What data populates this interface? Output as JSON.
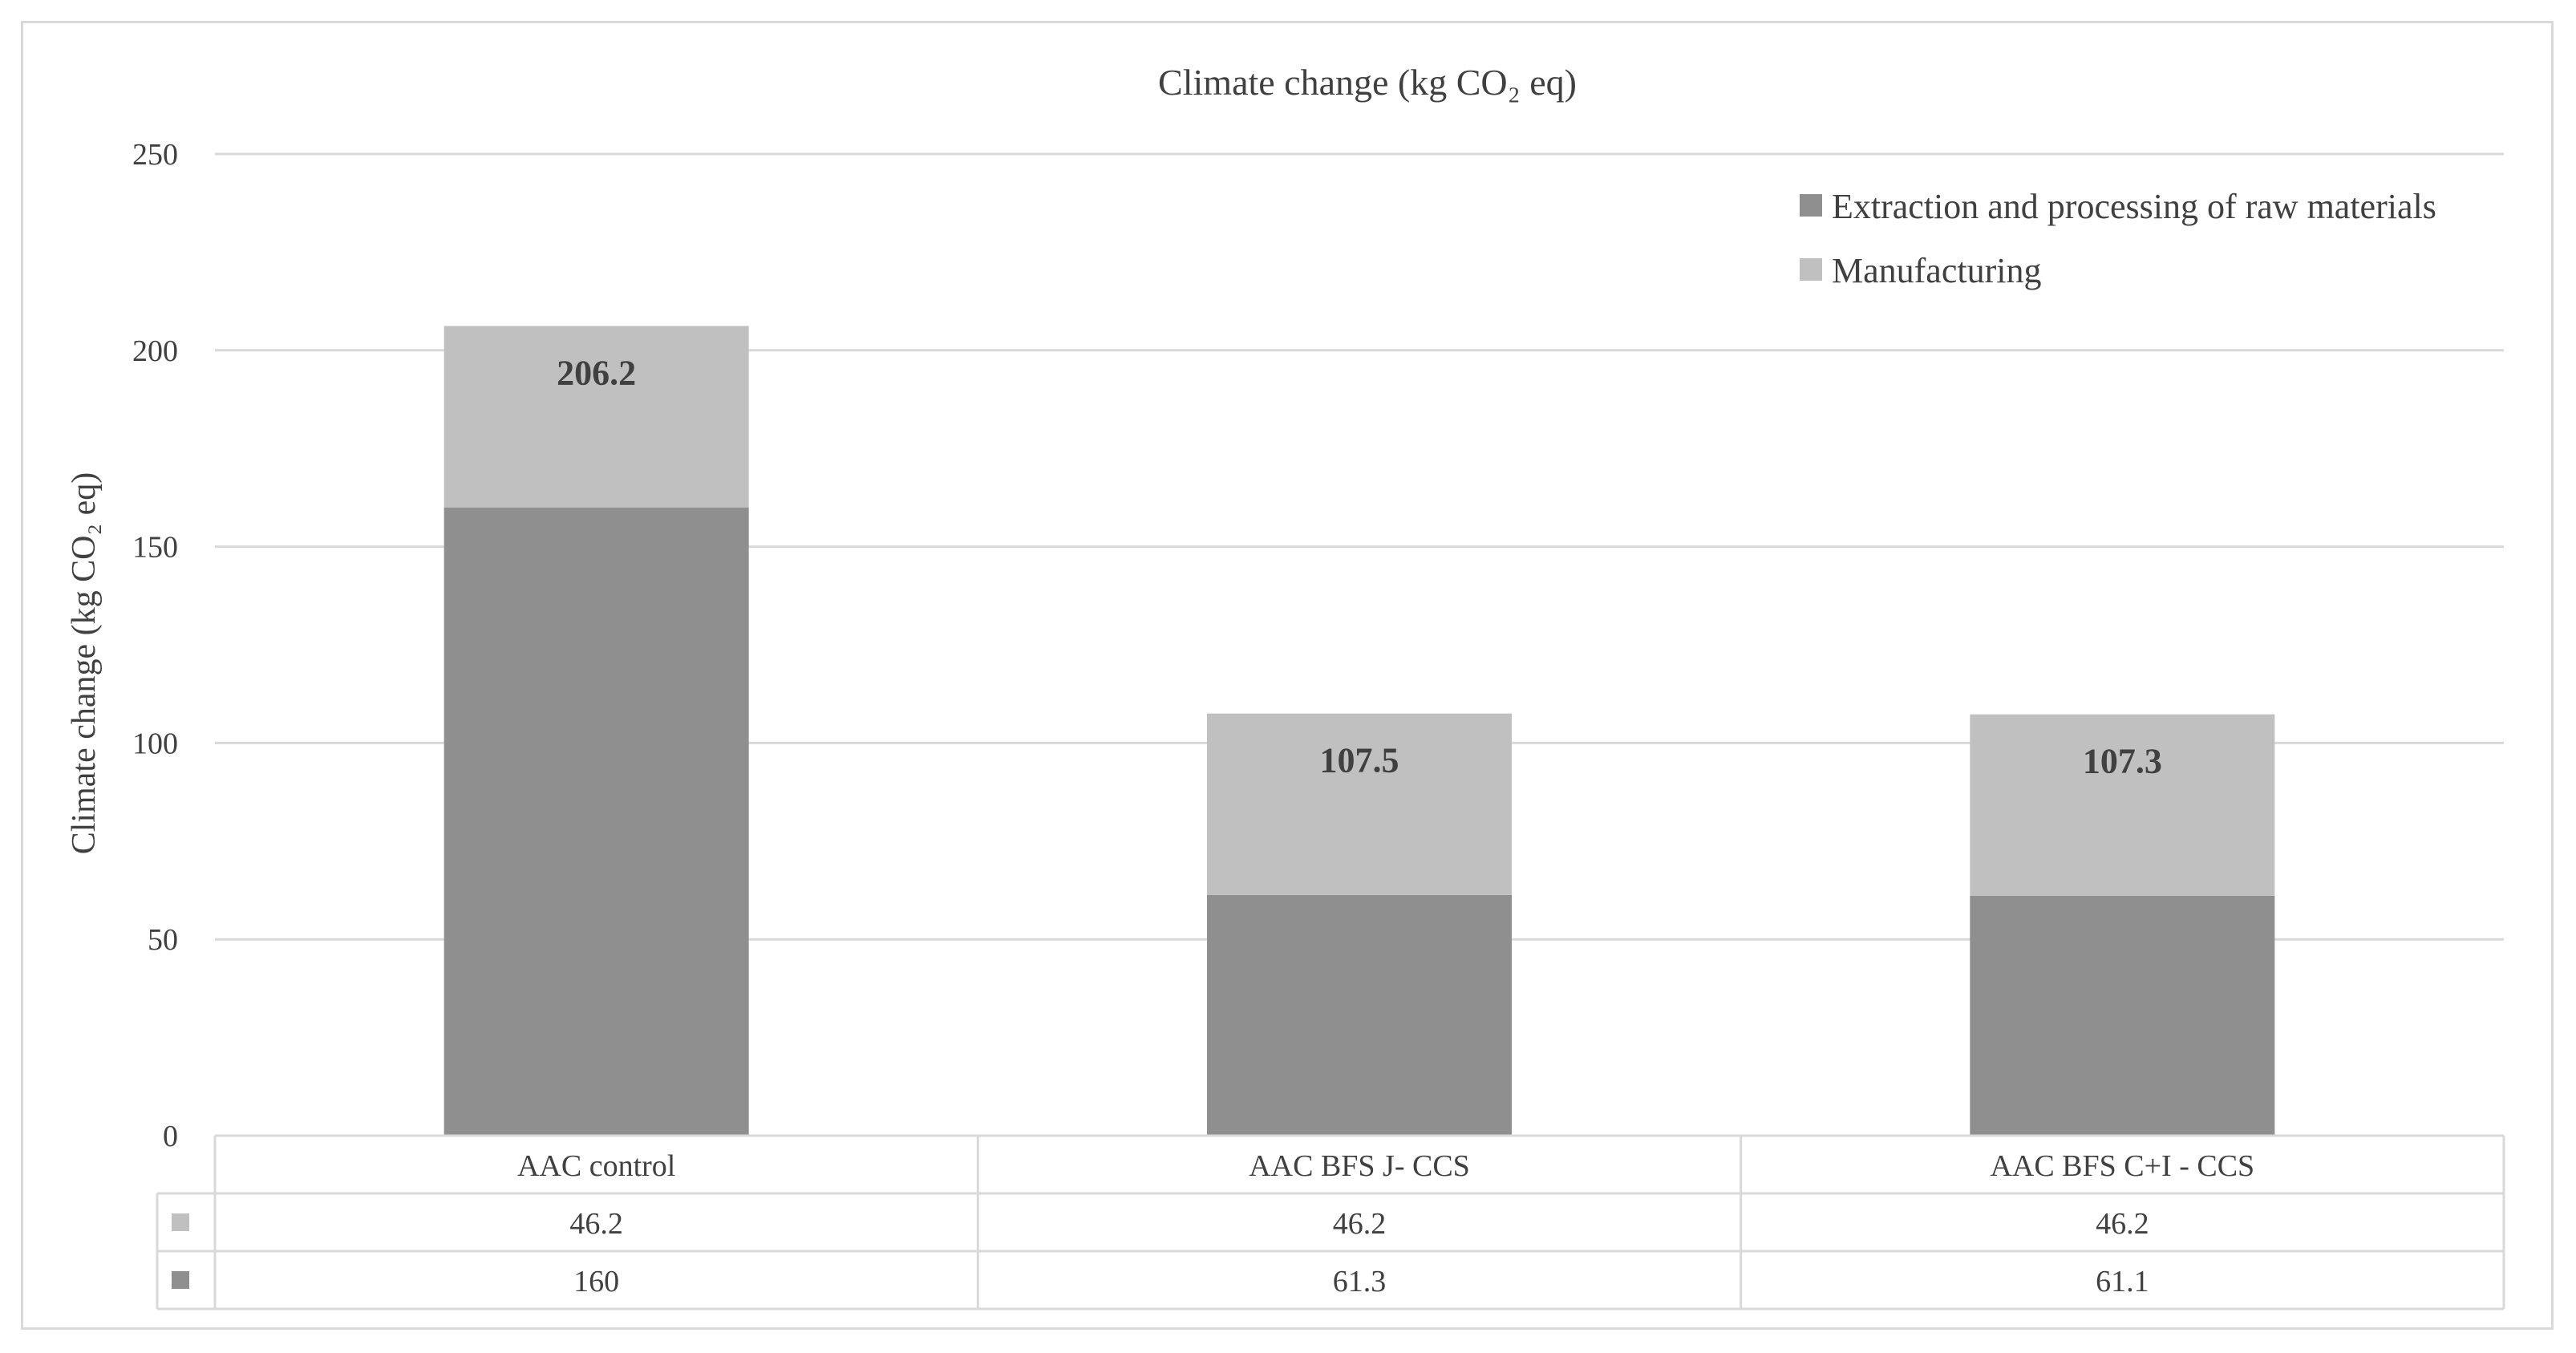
{
  "chart_data": {
    "type": "bar",
    "stacked": true,
    "title": "Climate change (kg CO₂ eq)",
    "ylabel": "Climate change (kg CO₂ eq)",
    "xlabel": "",
    "ylim": [
      0,
      250
    ],
    "yticks": [
      "0",
      "50",
      "100",
      "150",
      "200",
      "250"
    ],
    "grid": true,
    "legend_position": "top-right",
    "categories": [
      "AAC control",
      "AAC BFS J- CCS",
      "AAC BFS C+I - CCS"
    ],
    "series": [
      {
        "name": "Extraction and processing of raw materials",
        "color": "#8f8f8f",
        "values": [
          160,
          61.3,
          61.1
        ],
        "labels": [
          "160",
          "61.3",
          "61.1"
        ]
      },
      {
        "name": "Manufacturing",
        "color": "#c0c0c0",
        "values": [
          46.2,
          46.2,
          46.2
        ],
        "labels": [
          "46.2",
          "46.2",
          "46.2"
        ]
      }
    ],
    "totals": [
      "206.2",
      "107.5",
      "107.3"
    ]
  }
}
